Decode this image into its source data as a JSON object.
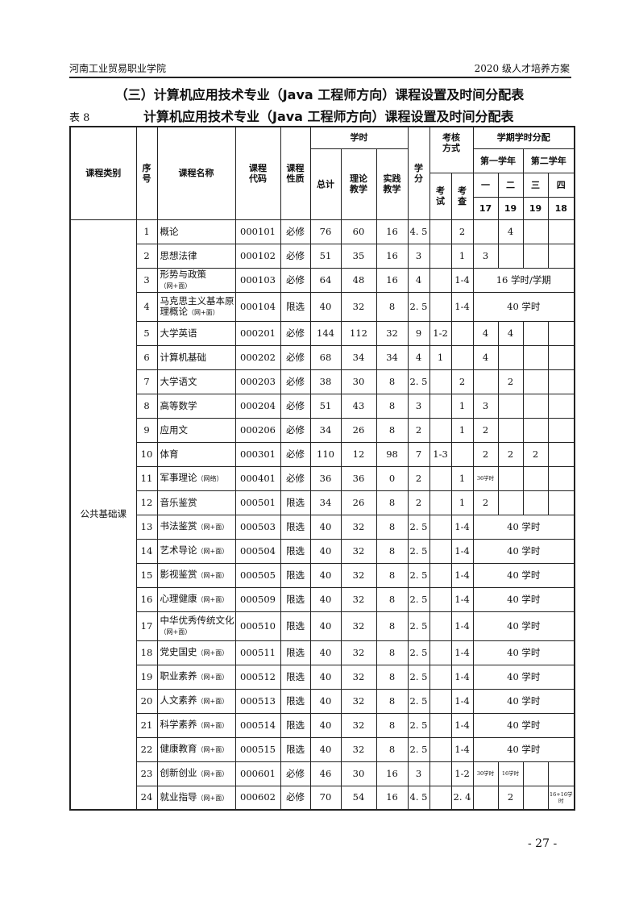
{
  "header": {
    "left": "河南工业贸易职业学院",
    "right": "2020 级人才培养方案"
  },
  "section_title": "（三）计算机应用技术专业（Java 工程师方向）课程设置及时间分配表",
  "table_label": "表 8",
  "table_title": "计算机应用技术专业（Java 工程师方向）课程设置及时间分配表",
  "columns": {
    "category": "课程类别",
    "no": "序号",
    "name": "课程名称",
    "code": "课程代码",
    "nature": "课程性质",
    "hours": "学时",
    "total": "总计",
    "theory": "理论教学",
    "practice": "实践教学",
    "credit": "学分",
    "assess": "考核方式",
    "exam": "考试",
    "check": "考查",
    "semester_dist": "学期学时分配",
    "year1": "第一学年",
    "year2": "第二学年",
    "semesters": [
      "一",
      "二",
      "三",
      "四"
    ],
    "weeks": [
      "17",
      "19",
      "19",
      "18"
    ]
  },
  "category": "公共基础课",
  "rows": [
    {
      "no": "1",
      "name": "概论",
      "note": "",
      "code": "000101",
      "nature": "必修",
      "total": "76",
      "theory": "60",
      "practice": "16",
      "credit": "4. 5",
      "exam": "",
      "check": "2",
      "sem": [
        "",
        "4",
        "",
        ""
      ]
    },
    {
      "no": "2",
      "name": "思想法律",
      "note": "",
      "code": "000102",
      "nature": "必修",
      "total": "51",
      "theory": "35",
      "practice": "16",
      "credit": "3",
      "exam": "",
      "check": "1",
      "sem": [
        "3",
        "",
        "",
        ""
      ]
    },
    {
      "no": "3",
      "name": "形势与政策",
      "note": "（网+面）",
      "code": "000103",
      "nature": "必修",
      "total": "64",
      "theory": "48",
      "practice": "16",
      "credit": "4",
      "exam": "",
      "check": "1-4",
      "span": "16 学时/学期"
    },
    {
      "no": "4",
      "name": "马克思主义基本原理概论",
      "note": "（网+面）",
      "code": "000104",
      "nature": "限选",
      "total": "40",
      "theory": "32",
      "practice": "8",
      "credit": "2. 5",
      "exam": "",
      "check": "1-4",
      "span": "40 学时"
    },
    {
      "no": "5",
      "name": "大学英语",
      "note": "",
      "code": "000201",
      "nature": "必修",
      "total": "144",
      "theory": "112",
      "practice": "32",
      "credit": "9",
      "exam": "1-2",
      "check": "",
      "sem": [
        "4",
        "4",
        "",
        ""
      ]
    },
    {
      "no": "6",
      "name": "计算机基础",
      "note": "",
      "code": "000202",
      "nature": "必修",
      "total": "68",
      "theory": "34",
      "practice": "34",
      "credit": "4",
      "exam": "1",
      "check": "",
      "sem": [
        "4",
        "",
        "",
        ""
      ]
    },
    {
      "no": "7",
      "name": "大学语文",
      "note": "",
      "code": "000203",
      "nature": "必修",
      "total": "38",
      "theory": "30",
      "practice": "8",
      "credit": "2. 5",
      "exam": "",
      "check": "2",
      "sem": [
        "",
        "2",
        "",
        ""
      ]
    },
    {
      "no": "8",
      "name": "高等数学",
      "note": "",
      "code": "000204",
      "nature": "必修",
      "total": "51",
      "theory": "43",
      "practice": "8",
      "credit": "3",
      "exam": "",
      "check": "1",
      "sem": [
        "3",
        "",
        "",
        ""
      ]
    },
    {
      "no": "9",
      "name": "应用文",
      "note": "",
      "code": "000206",
      "nature": "必修",
      "total": "34",
      "theory": "26",
      "practice": "8",
      "credit": "2",
      "exam": "",
      "check": "1",
      "sem": [
        "2",
        "",
        "",
        ""
      ]
    },
    {
      "no": "10",
      "name": "体育",
      "note": "",
      "code": "000301",
      "nature": "必修",
      "total": "110",
      "theory": "12",
      "practice": "98",
      "credit": "7",
      "exam": "1-3",
      "check": "",
      "sem": [
        "2",
        "2",
        "2",
        ""
      ]
    },
    {
      "no": "11",
      "name": "军事理论",
      "note": "（网络）",
      "code": "000401",
      "nature": "必修",
      "total": "36",
      "theory": "36",
      "practice": "0",
      "credit": "2",
      "exam": "",
      "check": "1",
      "sem": [
        "36学时",
        "",
        "",
        ""
      ],
      "small": [
        0
      ]
    },
    {
      "no": "12",
      "name": "音乐鉴赏",
      "note": "",
      "code": "000501",
      "nature": "限选",
      "total": "34",
      "theory": "26",
      "practice": "8",
      "credit": "2",
      "exam": "",
      "check": "1",
      "sem": [
        "2",
        "",
        "",
        ""
      ]
    },
    {
      "no": "13",
      "name": "书法鉴赏",
      "note": "（网+面）",
      "code": "000503",
      "nature": "限选",
      "total": "40",
      "theory": "32",
      "practice": "8",
      "credit": "2. 5",
      "exam": "",
      "check": "1-4",
      "span": "40 学时"
    },
    {
      "no": "14",
      "name": "艺术导论",
      "note": "（网+面）",
      "code": "000504",
      "nature": "限选",
      "total": "40",
      "theory": "32",
      "practice": "8",
      "credit": "2. 5",
      "exam": "",
      "check": "1-4",
      "span": "40 学时"
    },
    {
      "no": "15",
      "name": "影视鉴赏",
      "note": "（网+面）",
      "code": "000505",
      "nature": "限选",
      "total": "40",
      "theory": "32",
      "practice": "8",
      "credit": "2. 5",
      "exam": "",
      "check": "1-4",
      "span": "40 学时"
    },
    {
      "no": "16",
      "name": "心理健康",
      "note": "（网+面）",
      "code": "000509",
      "nature": "限选",
      "total": "40",
      "theory": "32",
      "practice": "8",
      "credit": "2. 5",
      "exam": "",
      "check": "1-4",
      "span": "40 学时"
    },
    {
      "no": "17",
      "name": "中华优秀传统文化",
      "note": "（网+面）",
      "code": "000510",
      "nature": "限选",
      "total": "40",
      "theory": "32",
      "practice": "8",
      "credit": "2. 5",
      "exam": "",
      "check": "1-4",
      "span": "40 学时"
    },
    {
      "no": "18",
      "name": "党史国史",
      "note": "（网+面）",
      "code": "000511",
      "nature": "限选",
      "total": "40",
      "theory": "32",
      "practice": "8",
      "credit": "2. 5",
      "exam": "",
      "check": "1-4",
      "span": "40 学时"
    },
    {
      "no": "19",
      "name": "职业素养",
      "note": "（网+面）",
      "code": "000512",
      "nature": "限选",
      "total": "40",
      "theory": "32",
      "practice": "8",
      "credit": "2. 5",
      "exam": "",
      "check": "1-4",
      "span": "40 学时"
    },
    {
      "no": "20",
      "name": "人文素养",
      "note": "（网+面）",
      "code": "000513",
      "nature": "限选",
      "total": "40",
      "theory": "32",
      "practice": "8",
      "credit": "2. 5",
      "exam": "",
      "check": "1-4",
      "span": "40 学时"
    },
    {
      "no": "21",
      "name": "科学素养",
      "note": "（网+面）",
      "code": "000514",
      "nature": "限选",
      "total": "40",
      "theory": "32",
      "practice": "8",
      "credit": "2. 5",
      "exam": "",
      "check": "1-4",
      "span": "40 学时"
    },
    {
      "no": "22",
      "name": "健康教育",
      "note": "（网+面）",
      "code": "000515",
      "nature": "限选",
      "total": "40",
      "theory": "32",
      "practice": "8",
      "credit": "2. 5",
      "exam": "",
      "check": "1-4",
      "span": "40 学时"
    },
    {
      "no": "23",
      "name": "创新创业",
      "note": "（网+面）",
      "code": "000601",
      "nature": "必修",
      "total": "46",
      "theory": "30",
      "practice": "16",
      "credit": "3",
      "exam": "",
      "check": "1-2",
      "sem": [
        "30学时",
        "16学时",
        "",
        ""
      ],
      "small": [
        0,
        1
      ]
    },
    {
      "no": "24",
      "name": "就业指导",
      "note": "（网+面）",
      "code": "000602",
      "nature": "必修",
      "total": "70",
      "theory": "54",
      "practice": "16",
      "credit": "4. 5",
      "exam": "",
      "check": "2. 4",
      "sem": [
        "",
        "2",
        "",
        "16+16学时"
      ],
      "small": [
        3
      ]
    }
  ],
  "page_number": "- 27 -"
}
